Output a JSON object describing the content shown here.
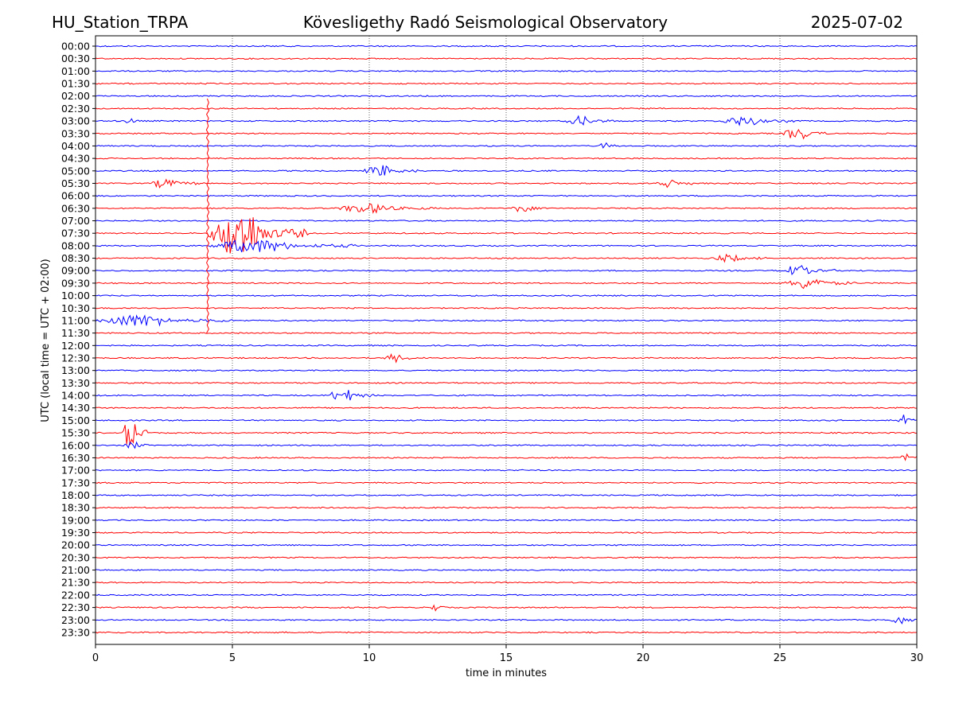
{
  "header": {
    "station": "HU_Station_TRPA",
    "observatory": "Kövesligethy Radó Seismological Observatory",
    "date": "2025-07-02"
  },
  "colors": {
    "trace_a": "#0000ff",
    "trace_b": "#ff0000",
    "axes": "#000000",
    "grid": "#000000"
  },
  "chart_data": {
    "type": "line",
    "plot_kind": "seismic helicorder (drum plot)",
    "title": "Kövesligethy Radó Seismological Observatory",
    "xlabel": "time in minutes",
    "ylabel": "UTC (local time = UTC + 02:00)",
    "xlim": [
      0,
      30
    ],
    "x_ticks": [
      0,
      5,
      10,
      15,
      20,
      25,
      30
    ],
    "vertical_grid": "dotted at 5, 10, 15, 20, 25",
    "row_interval_minutes": 30,
    "rows": [
      "00:00",
      "00:30",
      "01:00",
      "01:30",
      "02:00",
      "02:30",
      "03:00",
      "03:30",
      "04:00",
      "04:30",
      "05:00",
      "05:30",
      "06:00",
      "06:30",
      "07:00",
      "07:30",
      "08:00",
      "08:30",
      "09:00",
      "09:30",
      "10:00",
      "10:30",
      "11:00",
      "11:30",
      "12:00",
      "12:30",
      "13:00",
      "13:30",
      "14:00",
      "14:30",
      "15:00",
      "15:30",
      "16:00",
      "16:30",
      "17:00",
      "17:30",
      "18:00",
      "18:30",
      "19:00",
      "19:30",
      "20:00",
      "20:30",
      "21:00",
      "21:30",
      "22:00",
      "22:30",
      "23:00",
      "23:30"
    ],
    "row_colors": "alternating blue (xx:00) and red (xx:30)",
    "events": [
      {
        "row": "03:00",
        "start_min": 1.1,
        "end_min": 1.6,
        "amplitude": 0.35
      },
      {
        "row": "03:00",
        "start_min": 17.2,
        "end_min": 19.0,
        "amplitude": 0.35
      },
      {
        "row": "03:00",
        "start_min": 22.8,
        "end_min": 25.5,
        "amplitude": 0.35
      },
      {
        "row": "03:30",
        "start_min": 25.1,
        "end_min": 26.8,
        "amplitude": 0.45
      },
      {
        "row": "04:00",
        "start_min": 18.4,
        "end_min": 19.0,
        "amplitude": 0.3
      },
      {
        "row": "05:00",
        "start_min": 9.8,
        "end_min": 11.8,
        "amplitude": 0.45
      },
      {
        "row": "05:30",
        "start_min": 2.0,
        "end_min": 3.8,
        "amplitude": 0.35
      },
      {
        "row": "05:30",
        "start_min": 20.5,
        "end_min": 21.8,
        "amplitude": 0.35
      },
      {
        "row": "06:30",
        "start_min": 8.8,
        "end_min": 12.5,
        "amplitude": 0.35
      },
      {
        "row": "06:30",
        "start_min": 15.2,
        "end_min": 16.5,
        "amplitude": 0.3
      },
      {
        "row": "07:30",
        "start_min": 4.1,
        "end_min": 7.8,
        "amplitude": 2.0
      },
      {
        "row": "08:00",
        "start_min": 4.1,
        "end_min": 9.5,
        "amplitude": 0.5
      },
      {
        "row": "08:30",
        "start_min": 22.5,
        "end_min": 24.5,
        "amplitude": 0.25
      },
      {
        "row": "09:00",
        "start_min": 25.0,
        "end_min": 27.0,
        "amplitude": 0.4
      },
      {
        "row": "09:30",
        "start_min": 25.2,
        "end_min": 27.8,
        "amplitude": 0.45
      },
      {
        "row": "11:00",
        "start_min": 0.0,
        "end_min": 5.0,
        "amplitude": 0.45
      },
      {
        "row": "12:30",
        "start_min": 10.5,
        "end_min": 11.8,
        "amplitude": 0.3
      },
      {
        "row": "14:00",
        "start_min": 8.5,
        "end_min": 10.2,
        "amplitude": 0.5
      },
      {
        "row": "15:00",
        "start_min": 29.3,
        "end_min": 30.0,
        "amplitude": 0.4
      },
      {
        "row": "15:30",
        "start_min": 1.0,
        "end_min": 1.9,
        "amplitude": 1.4
      },
      {
        "row": "16:00",
        "start_min": 1.0,
        "end_min": 2.2,
        "amplitude": 0.25
      },
      {
        "row": "16:30",
        "start_min": 29.4,
        "end_min": 30.0,
        "amplitude": 0.35
      },
      {
        "row": "22:30",
        "start_min": 12.2,
        "end_min": 12.8,
        "amplitude": 0.3
      },
      {
        "row": "23:00",
        "start_min": 29.0,
        "end_min": 30.0,
        "amplitude": 0.3
      }
    ],
    "big_spike": {
      "start_row": "03:00",
      "end_row": "11:30",
      "minute": 4.1
    }
  }
}
